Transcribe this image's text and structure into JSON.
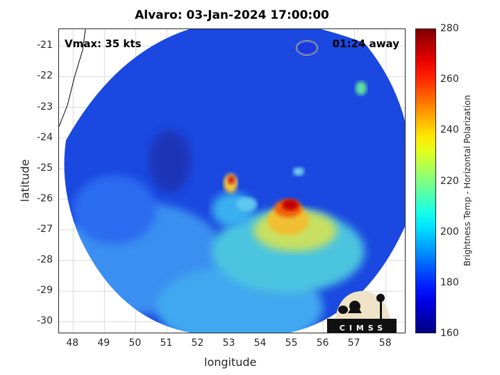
{
  "title": "Alvaro: 03-Jan-2024 17:00:00",
  "vmax_label": "Vmax: 35 kts",
  "time_label": "01:24 away",
  "x_axis": {
    "label": "longitude",
    "ticks": [
      "48",
      "49",
      "50",
      "51",
      "52",
      "53",
      "54",
      "55",
      "56",
      "57",
      "58"
    ]
  },
  "y_axis": {
    "label": "latitude",
    "ticks": [
      "-21",
      "-22",
      "-23",
      "-24",
      "-25",
      "-26",
      "-27",
      "-28",
      "-29",
      "-30"
    ]
  },
  "colorbar": {
    "label": "Brightness Temp - Horizontal Polarization",
    "ticks": [
      "280",
      "260",
      "240",
      "220",
      "200",
      "180",
      "160"
    ],
    "range": [
      160,
      280
    ]
  },
  "logo_text": "CIMSS",
  "map_extent": {
    "lon": [
      47.55,
      58.65
    ],
    "lat": [
      -30.4,
      -20.45
    ]
  }
}
